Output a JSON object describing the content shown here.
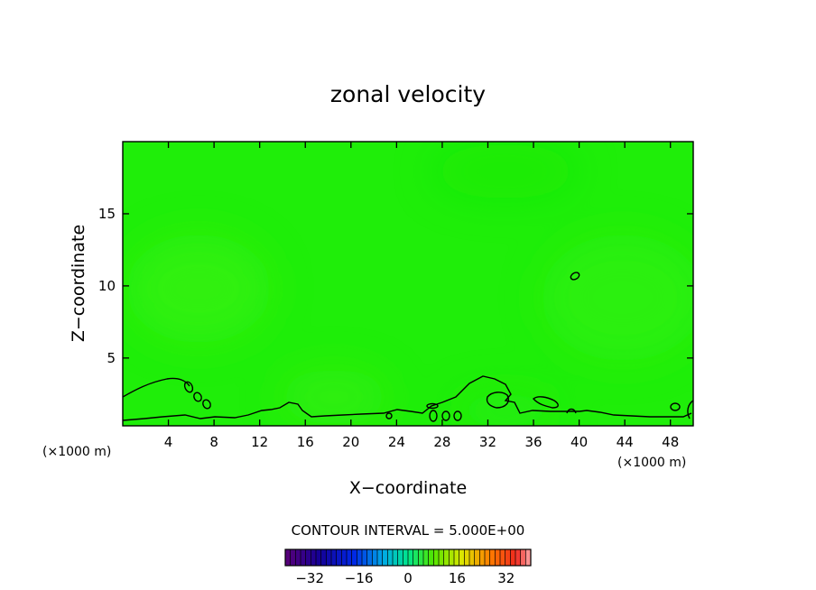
{
  "chart_data": {
    "type": "heatmap",
    "title": "zonal velocity",
    "xlabel": "X−coordinate",
    "ylabel": "Z−coordinate",
    "x_unit_left": "(×1000 m)",
    "x_unit_right": "(×1000 m)",
    "xlim": [
      0,
      50
    ],
    "ylim": [
      0.3,
      20
    ],
    "x_ticks": [
      4,
      8,
      12,
      16,
      20,
      24,
      28,
      32,
      36,
      40,
      44,
      48
    ],
    "y_ticks": [
      5,
      10,
      15
    ],
    "contour_interval_label": "CONTOUR INTERVAL = 5.000E+00",
    "contour_levels": [
      0
    ],
    "colorbar": {
      "min": -40,
      "max": 40,
      "ticks": [
        -32,
        -16,
        0,
        16,
        32
      ]
    },
    "field_range_estimate": [
      -3,
      4
    ],
    "grid": false,
    "legend": "colorbar bottom-center"
  }
}
